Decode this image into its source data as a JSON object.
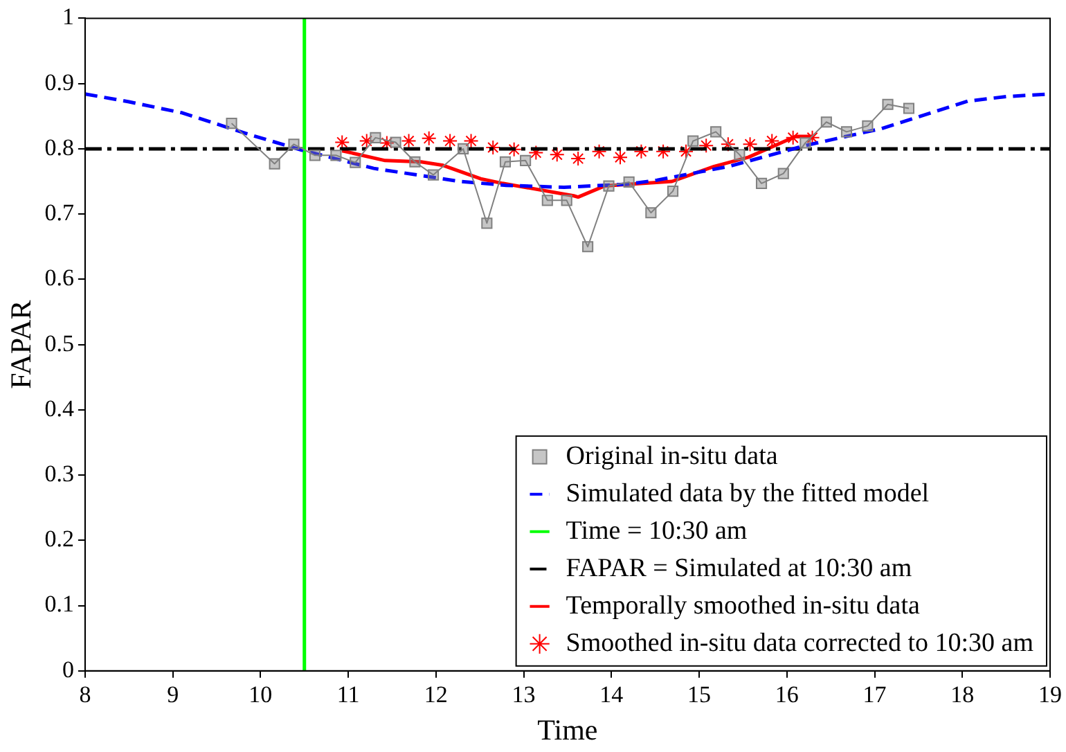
{
  "chart_data": {
    "type": "line",
    "xlabel": "Time",
    "ylabel": "FAPAR",
    "xlim": [
      8,
      19
    ],
    "xticks": [
      8,
      9,
      10,
      11,
      12,
      13,
      14,
      15,
      16,
      17,
      18,
      19
    ],
    "ylim": [
      0,
      1
    ],
    "yticks": [
      0,
      0.1,
      0.2,
      0.3,
      0.4,
      0.5,
      0.6,
      0.7,
      0.8,
      0.9,
      1
    ],
    "grid": false,
    "legend": "bottom right",
    "series": [
      {
        "name": "Original in-situ data",
        "color": "#808080",
        "marker": "square",
        "line_style": "solid",
        "x": [
          9.67,
          10.16,
          10.38,
          10.62,
          10.86,
          11.08,
          11.31,
          11.54,
          11.76,
          11.97,
          12.31,
          12.58,
          12.79,
          13.02,
          13.27,
          13.49,
          13.73,
          13.97,
          14.2,
          14.45,
          14.7,
          14.93,
          15.19,
          15.46,
          15.71,
          15.96,
          16.21,
          16.45,
          16.68,
          16.92,
          17.15,
          17.39
        ],
        "values": [
          0.839,
          0.777,
          0.807,
          0.79,
          0.79,
          0.779,
          0.817,
          0.81,
          0.78,
          0.76,
          0.8,
          0.686,
          0.78,
          0.782,
          0.721,
          0.721,
          0.65,
          0.743,
          0.749,
          0.702,
          0.735,
          0.812,
          0.826,
          0.791,
          0.747,
          0.762,
          0.809,
          0.841,
          0.826,
          0.835,
          0.868,
          0.862
        ]
      },
      {
        "name": "Simulated data by the fitted model",
        "color": "#0000ff",
        "marker": "none",
        "line_style": "dashed",
        "x": [
          8,
          8.5,
          9.11,
          9.87,
          10.47,
          11.29,
          12.27,
          12.8,
          13.46,
          14.2,
          14.52,
          15.34,
          16.21,
          17.08,
          18.06,
          18.5,
          19
        ],
        "values": [
          0.884,
          0.872,
          0.855,
          0.822,
          0.798,
          0.77,
          0.75,
          0.744,
          0.741,
          0.746,
          0.752,
          0.773,
          0.805,
          0.831,
          0.873,
          0.88,
          0.884
        ]
      },
      {
        "name": "Time = 10:30 am",
        "color": "#00ff00",
        "marker": "none",
        "line_style": "solid",
        "x": [
          10.5,
          10.5
        ],
        "values": [
          0,
          1
        ]
      },
      {
        "name": "FAPAR = Simulated at 10:30 am",
        "color": "#000000",
        "marker": "none",
        "line_style": "dashdot",
        "x": [
          8,
          19
        ],
        "values": [
          0.8,
          0.8
        ]
      },
      {
        "name": "Temporally smoothed in-situ data",
        "color": "#ff0000",
        "marker": "none",
        "line_style": "solid",
        "x": [
          10.93,
          11.42,
          11.83,
          12.07,
          12.51,
          12.76,
          13.57,
          13.62,
          13.92,
          14.69,
          15.17,
          15.56,
          16.1,
          16.29
        ],
        "values": [
          0.797,
          0.782,
          0.78,
          0.775,
          0.754,
          0.747,
          0.728,
          0.726,
          0.743,
          0.75,
          0.773,
          0.787,
          0.819,
          0.819
        ]
      },
      {
        "name": "Smoothed in-situ data corrected to 10:30 am",
        "type": "scatter",
        "color": "#ff0000",
        "marker": "cross",
        "x": [
          10.93,
          11.21,
          11.44,
          11.69,
          11.92,
          12.16,
          12.4,
          12.65,
          12.89,
          13.14,
          13.38,
          13.62,
          13.86,
          14.1,
          14.34,
          14.59,
          14.85,
          15.08,
          15.33,
          15.58,
          15.83,
          16.07,
          16.29
        ],
        "values": [
          0.81,
          0.812,
          0.809,
          0.812,
          0.816,
          0.812,
          0.812,
          0.802,
          0.799,
          0.794,
          0.791,
          0.785,
          0.796,
          0.787,
          0.796,
          0.796,
          0.796,
          0.805,
          0.807,
          0.807,
          0.812,
          0.817,
          0.817
        ]
      }
    ]
  }
}
